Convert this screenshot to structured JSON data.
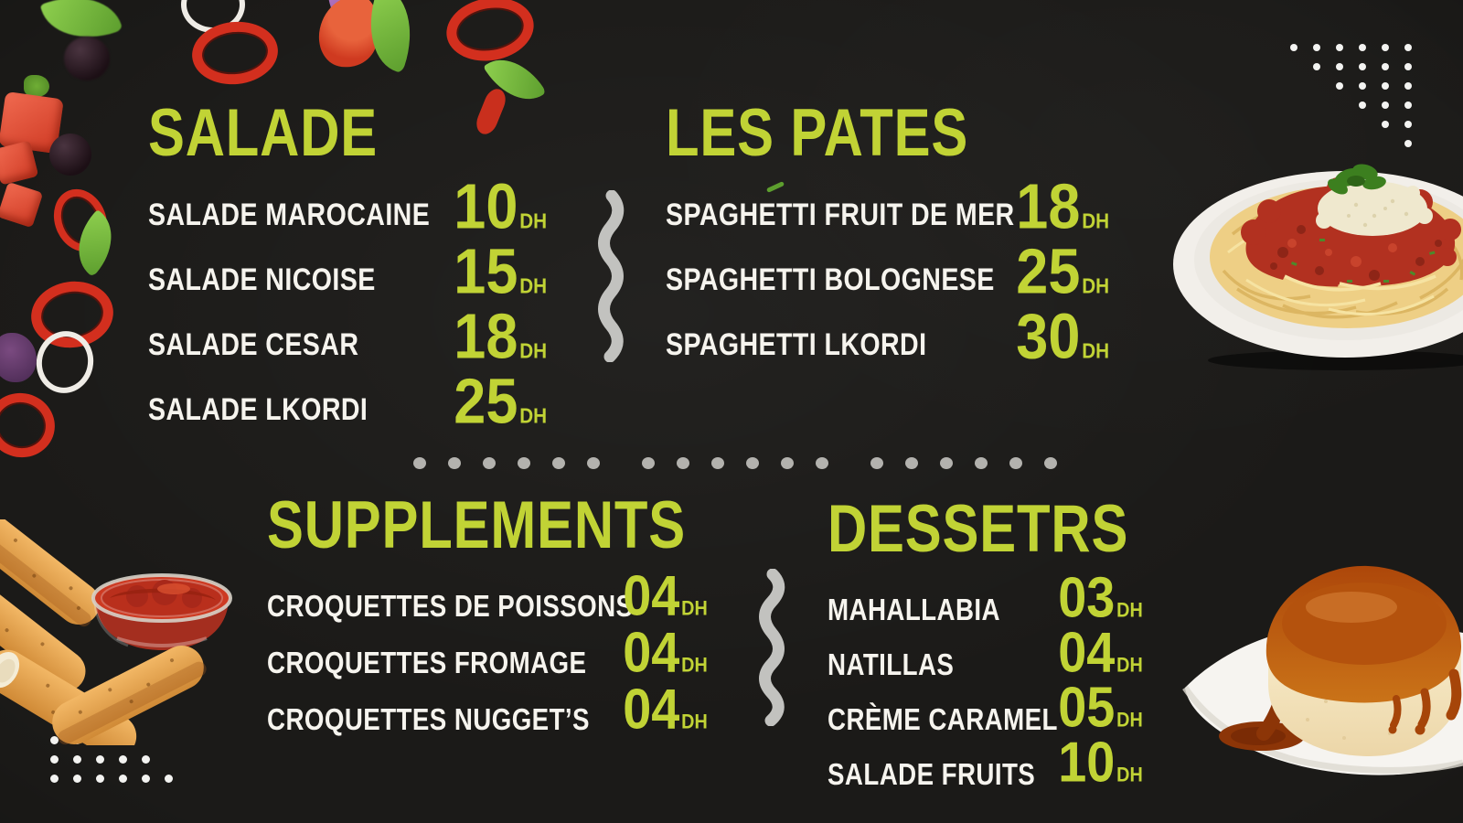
{
  "menu": {
    "currency": "DH",
    "sections": [
      {
        "title": "SALADE",
        "items": [
          {
            "name": "SALADE MAROCAINE",
            "price": "10"
          },
          {
            "name": "SALADE NICOISE",
            "price": "15"
          },
          {
            "name": "SALADE CESAR",
            "price": "18"
          },
          {
            "name": "SALADE LKORDI",
            "price": "25"
          }
        ]
      },
      {
        "title": "LES PATES",
        "items": [
          {
            "name": "SPAGHETTI FRUIT DE MER",
            "price": "18"
          },
          {
            "name": "SPAGHETTI BOLOGNESE",
            "price": "25"
          },
          {
            "name": "SPAGHETTI LKORDI",
            "price": "30"
          }
        ]
      },
      {
        "title": "SUPPLEMENTS",
        "items": [
          {
            "name": "CROQUETTES DE POISSONS",
            "price": "04"
          },
          {
            "name": "CROQUETTES FROMAGE",
            "price": "04"
          },
          {
            "name": "CROQUETTES NUGGET’S",
            "price": "04"
          }
        ]
      },
      {
        "title": "DESSETRS",
        "items": [
          {
            "name": "MAHALLABIA",
            "price": "03"
          },
          {
            "name": "NATILLAS",
            "price": "04"
          },
          {
            "name": "CRÈME CARAMEL",
            "price": "05"
          },
          {
            "name": "SALADE FRUITS",
            "price": "10"
          }
        ]
      }
    ]
  },
  "colors": {
    "background": "#1b1a18",
    "accent": "#c1d335",
    "text": "#f6f4ee",
    "divider_dots": "#b3b2ae",
    "white_dots": "#f3f3f1"
  },
  "decor": {
    "icons": [
      "basil-leaf-icon",
      "black-olive-icon",
      "tomato-cube-icon",
      "red-pepper-ring-icon",
      "onion-ring-icon",
      "purple-basil-icon",
      "tomato-wedge-icon",
      "onion-sliver-icon",
      "herb-sprig-icon",
      "pepper-sliver-icon",
      "stem-icon",
      "wavy-divider-icon",
      "dotted-divider-icon",
      "dots-triangle-icon",
      "dots-grid-icon",
      "spaghetti-plate-image",
      "croquettes-image",
      "sauce-bowl-icon",
      "creme-caramel-image"
    ]
  }
}
